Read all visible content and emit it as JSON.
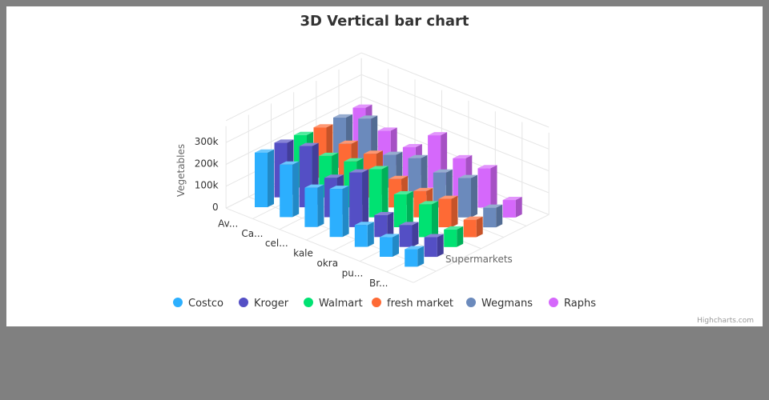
{
  "chart_data": {
    "type": "bar",
    "title": "3D Vertical bar chart",
    "ylabel": "Vegetables",
    "zlabel": "Supermarkets",
    "ylim": [
      0,
      300000
    ],
    "yticks": [
      "0",
      "100k",
      "200k",
      "300k"
    ],
    "categories": [
      "Av...",
      "Ca...",
      "cel...",
      "kale",
      "okra",
      "pu...",
      "Br..."
    ],
    "series": [
      {
        "name": "Costco",
        "color": "#2caffe",
        "values": [
          250000,
          240000,
          180000,
          220000,
          100000,
          90000,
          80000
        ]
      },
      {
        "name": "Kroger",
        "color": "#544fc5",
        "values": [
          250000,
          280000,
          180000,
          250000,
          100000,
          100000,
          90000
        ]
      },
      {
        "name": "Walmart",
        "color": "#00e272",
        "values": [
          240000,
          190000,
          210000,
          220000,
          150000,
          150000,
          80000
        ]
      },
      {
        "name": "fresh market",
        "color": "#fe6a35",
        "values": [
          230000,
          200000,
          200000,
          130000,
          120000,
          130000,
          80000
        ]
      },
      {
        "name": "Wegmans",
        "color": "#6b8abc",
        "values": [
          230000,
          270000,
          150000,
          180000,
          160000,
          180000,
          90000
        ]
      },
      {
        "name": "Raphs",
        "color": "#d568fb",
        "values": [
          230000,
          170000,
          140000,
          240000,
          180000,
          180000,
          80000
        ]
      }
    ],
    "legend_position": "bottom-center",
    "grid": true
  },
  "credits": "Highcharts.com"
}
